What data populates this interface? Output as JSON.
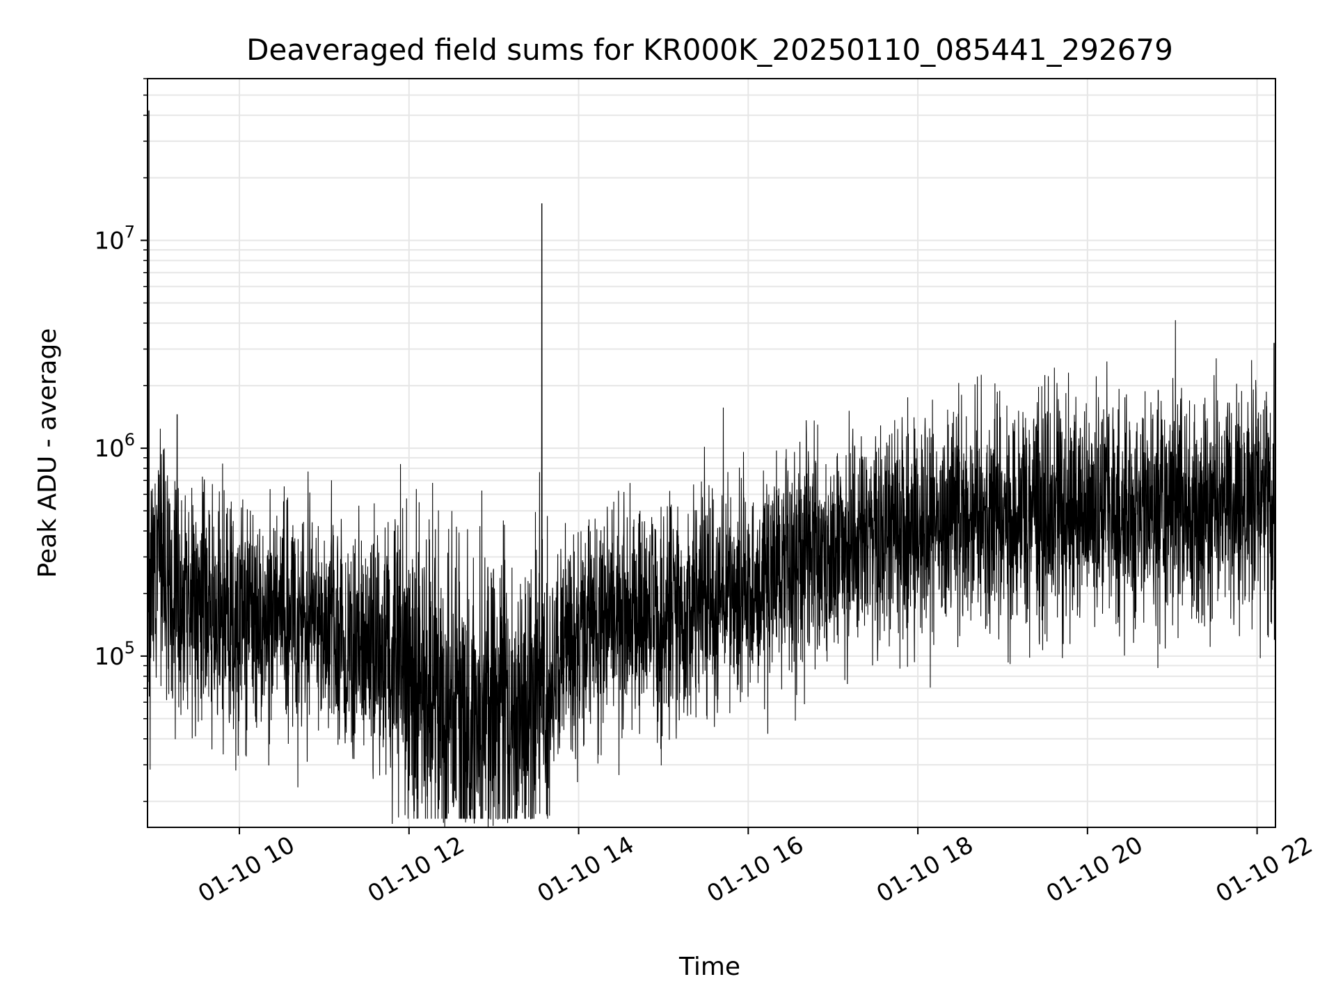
{
  "chart_data": {
    "type": "line",
    "title": "Deaveraged field sums for KR000K_20250110_085441_292679",
    "xlabel": "Time",
    "ylabel": "Peak ADU - average",
    "yscale": "log",
    "grid": true,
    "line_color": "#000000",
    "grid_color": "#e6e6e6",
    "xlim": [
      "2025-01-10 08:55",
      "2025-01-10 22:13"
    ],
    "ylim": [
      15000,
      60000000
    ],
    "x_ticks": [
      {
        "t": "2025-01-10 10:00",
        "label": "01-10 10"
      },
      {
        "t": "2025-01-10 12:00",
        "label": "01-10 12"
      },
      {
        "t": "2025-01-10 14:00",
        "label": "01-10 14"
      },
      {
        "t": "2025-01-10 16:00",
        "label": "01-10 16"
      },
      {
        "t": "2025-01-10 18:00",
        "label": "01-10 18"
      },
      {
        "t": "2025-01-10 20:00",
        "label": "01-10 20"
      },
      {
        "t": "2025-01-10 22:00",
        "label": "01-10 22"
      }
    ],
    "y_ticks": [
      {
        "value": 100000,
        "base": "10",
        "exp": "5"
      },
      {
        "value": 1000000,
        "base": "10",
        "exp": "6"
      },
      {
        "value": 10000000,
        "base": "10",
        "exp": "7"
      }
    ],
    "trend": {
      "x": [
        "2025-01-10 08:55",
        "2025-01-10 09:05",
        "2025-01-10 09:20",
        "2025-01-10 10:00",
        "2025-01-10 11:00",
        "2025-01-10 12:00",
        "2025-01-10 12:30",
        "2025-01-10 13:00",
        "2025-01-10 13:40",
        "2025-01-10 14:00",
        "2025-01-10 15:00",
        "2025-01-10 16:00",
        "2025-01-10 17:00",
        "2025-01-10 18:00",
        "2025-01-10 19:00",
        "2025-01-10 20:00",
        "2025-01-10 21:00",
        "2025-01-10 22:00",
        "2025-01-10 22:13"
      ],
      "y": [
        220000,
        240000,
        170000,
        160000,
        140000,
        80000,
        55000,
        50000,
        70000,
        130000,
        180000,
        210000,
        330000,
        420000,
        450000,
        500000,
        520000,
        560000,
        560000
      ]
    },
    "spikes": [
      {
        "x": "2025-01-10 08:56",
        "y": 42000000
      },
      {
        "x": "2025-01-10 09:16",
        "y": 1450000
      },
      {
        "x": "2025-01-10 13:34",
        "y": 15000000
      },
      {
        "x": "2025-01-10 20:50",
        "y": 1900000
      },
      {
        "x": "2025-01-10 22:12",
        "y": 3200000
      }
    ]
  }
}
